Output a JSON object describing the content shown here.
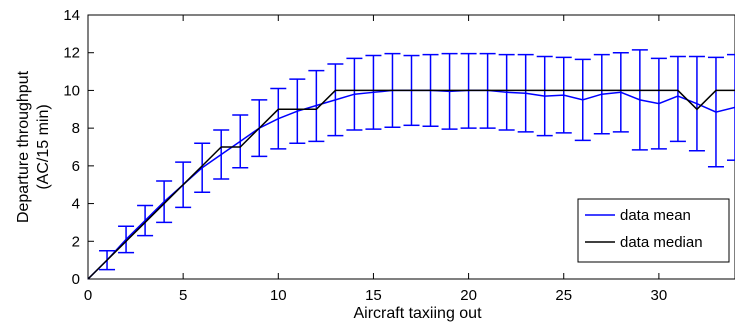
{
  "chart_data": {
    "type": "line",
    "title": "",
    "xlabel": "Aircraft taxiing out",
    "ylabel": "Departure throughput",
    "ylabel_unit": "(AC/15 min)",
    "xlim": [
      0,
      34
    ],
    "ylim": [
      0,
      14
    ],
    "x_ticks": [
      "0",
      "5",
      "10",
      "15",
      "20",
      "25",
      "30"
    ],
    "y_ticks": [
      "0",
      "2",
      "4",
      "6",
      "8",
      "10",
      "12",
      "14"
    ],
    "grid": false,
    "legend_position": "bottom-right",
    "colors": {
      "mean": "#0000ff",
      "median": "#000000"
    },
    "x": [
      0,
      1,
      2,
      3,
      4,
      5,
      6,
      7,
      8,
      9,
      10,
      11,
      12,
      13,
      14,
      15,
      16,
      17,
      18,
      19,
      20,
      21,
      22,
      23,
      24,
      25,
      26,
      27,
      28,
      29,
      30,
      31,
      32,
      33,
      34
    ],
    "series": [
      {
        "name": "data mean",
        "color": "#0000ff",
        "values": [
          0,
          1,
          2.1,
          3.1,
          4.1,
          5.0,
          5.9,
          6.6,
          7.3,
          8.0,
          8.5,
          8.9,
          9.2,
          9.5,
          9.8,
          9.9,
          10.0,
          10.0,
          10.0,
          9.95,
          10.0,
          10.0,
          9.9,
          9.85,
          9.7,
          9.75,
          9.5,
          9.8,
          9.9,
          9.5,
          9.3,
          9.7,
          9.3,
          8.85,
          9.1
        ],
        "err_low": [
          0,
          0.5,
          1.4,
          2.3,
          3.0,
          3.8,
          4.6,
          5.3,
          5.9,
          6.5,
          6.9,
          7.2,
          7.3,
          7.6,
          7.9,
          7.95,
          8.05,
          8.15,
          8.1,
          7.95,
          8.0,
          8.0,
          7.9,
          7.8,
          7.6,
          7.75,
          7.35,
          7.7,
          7.8,
          6.85,
          6.9,
          7.3,
          6.8,
          5.95,
          6.3
        ],
        "err_high": [
          0,
          1.5,
          2.8,
          3.9,
          5.2,
          6.2,
          7.2,
          7.9,
          8.7,
          9.5,
          10.1,
          10.6,
          11.05,
          11.4,
          11.7,
          11.85,
          11.95,
          11.85,
          11.9,
          11.95,
          11.95,
          11.95,
          11.9,
          11.9,
          11.8,
          11.75,
          11.65,
          11.9,
          12.0,
          12.15,
          11.7,
          11.8,
          11.8,
          11.75,
          11.9
        ]
      },
      {
        "name": "data median",
        "color": "#000000",
        "values": [
          0,
          1,
          2,
          3,
          4,
          5,
          6,
          7,
          7,
          8,
          9,
          9,
          9,
          10,
          10,
          10,
          10,
          10,
          10,
          10,
          10,
          10,
          10,
          10,
          10,
          10,
          10,
          10,
          10,
          10,
          10,
          10,
          9,
          10,
          10
        ]
      }
    ]
  }
}
